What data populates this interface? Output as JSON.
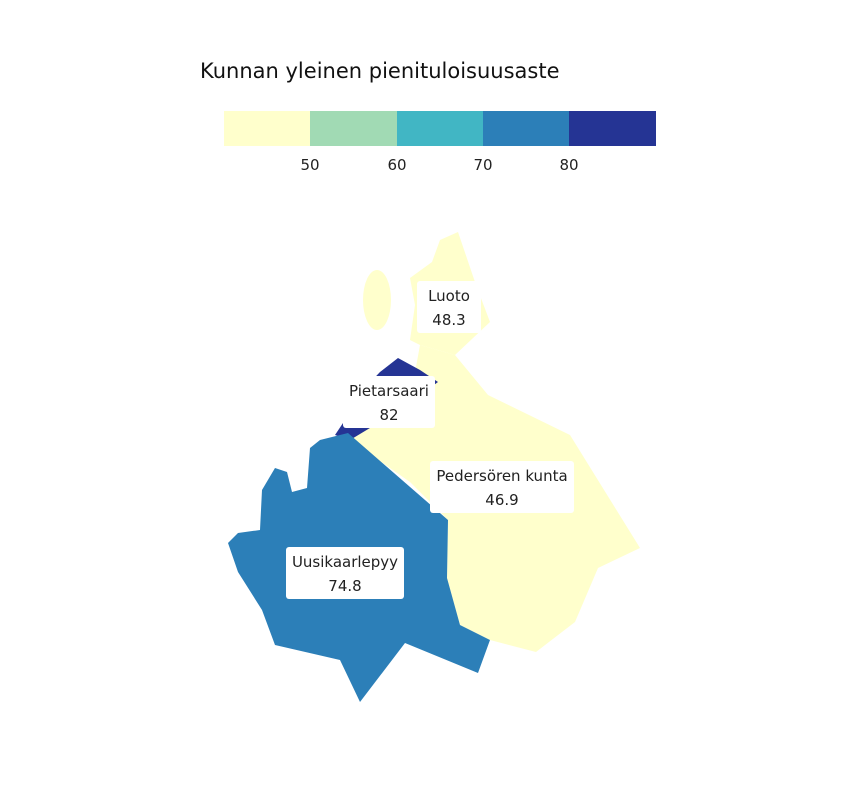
{
  "legend": {
    "title": "Kunnan yleinen pienituloisuusaste",
    "ticks": [
      "50",
      "60",
      "70",
      "80"
    ],
    "bins": [
      {
        "color": "#ffffcc"
      },
      {
        "color": "#a1dab4"
      },
      {
        "color": "#41b6c4"
      },
      {
        "color": "#2c7fb8"
      },
      {
        "color": "#253494"
      }
    ]
  },
  "regions": [
    {
      "id": "luoto",
      "name": "Luoto",
      "value": "48.3",
      "color": "#ffffcc"
    },
    {
      "id": "pietarsaari",
      "name": "Pietarsaari",
      "value": "82",
      "color": "#253494"
    },
    {
      "id": "pedersoren",
      "name": "Pedersören kunta",
      "value": "46.9",
      "color": "#ffffcc"
    },
    {
      "id": "uusikaarlepyy",
      "name": "Uusikaarlepyy",
      "value": "74.8",
      "color": "#2c7fb8"
    }
  ]
}
